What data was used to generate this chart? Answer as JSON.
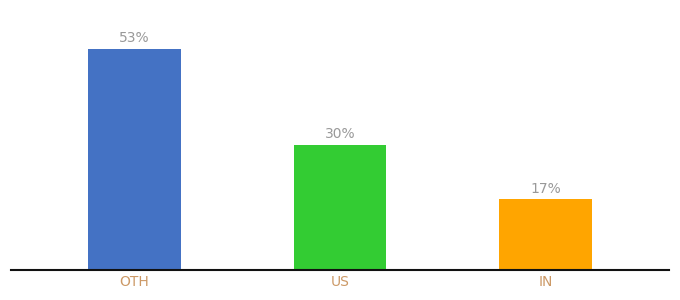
{
  "categories": [
    "OTH",
    "US",
    "IN"
  ],
  "values": [
    53,
    30,
    17
  ],
  "bar_colors": [
    "#4472C4",
    "#33CC33",
    "#FFA500"
  ],
  "ylim": [
    0,
    62
  ],
  "background_color": "#ffffff",
  "bar_width": 0.45,
  "label_color": "#999999",
  "label_fontsize": 10,
  "tick_fontsize": 10,
  "tick_color": "#cc9966",
  "axis_line_color": "#111111",
  "figsize": [
    6.8,
    3.0
  ],
  "dpi": 100
}
